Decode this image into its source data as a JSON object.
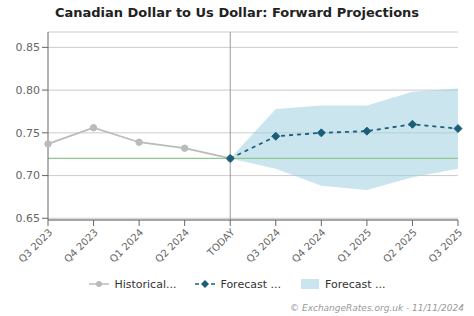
{
  "chart_data": {
    "type": "line",
    "title": "Canadian Dollar to Us Dollar: Forward Projections",
    "categories": [
      "Q3 2023",
      "Q4 2023",
      "Q1 2024",
      "Q2 2024",
      "TODAY",
      "Q3 2024",
      "Q4 2024",
      "Q1 2025",
      "Q2 2025",
      "Q3 2025"
    ],
    "series": [
      {
        "name": "Historical...",
        "type": "line",
        "color": "#bbbbbb",
        "marker": "circle",
        "line_style": "solid",
        "values": [
          0.737,
          0.756,
          0.739,
          0.732,
          0.72,
          null,
          null,
          null,
          null,
          null
        ]
      },
      {
        "name": "Forecast ...",
        "type": "line",
        "color": "#1a5f7a",
        "marker": "diamond",
        "line_style": "dashed",
        "values": [
          null,
          null,
          null,
          null,
          0.72,
          0.746,
          0.75,
          0.752,
          0.76,
          0.755
        ]
      },
      {
        "name": "Forecast ...",
        "type": "band",
        "color": "#a0cfe0",
        "lower": [
          null,
          null,
          null,
          null,
          0.72,
          0.708,
          0.688,
          0.683,
          0.698,
          0.708
        ],
        "upper": [
          null,
          null,
          null,
          null,
          0.72,
          0.778,
          0.782,
          0.782,
          0.798,
          0.802
        ]
      }
    ],
    "hline": {
      "y": 0.72,
      "color": "#90c890"
    },
    "vline": {
      "x": "TODAY",
      "color": "#999999"
    },
    "ylim": [
      0.648,
      0.868
    ],
    "yticks": [
      0.65,
      {
        "value": 0.7,
        "label": "0.70"
      },
      0.75,
      {
        "value": 0.8,
        "label": "0.80"
      },
      0.85
    ],
    "grid": true,
    "legend": "bottom",
    "annotations": [
      "© ExchangeRates.org.uk - 11/11/2024"
    ]
  }
}
